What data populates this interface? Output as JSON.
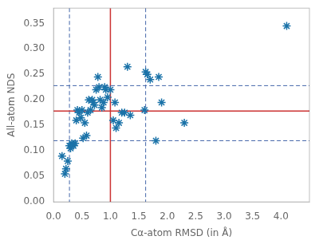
{
  "chart_data": {
    "type": "scatter",
    "xlabel": "Cα-atom RMSD (in Å)",
    "ylabel": "All-atom NDS",
    "x": [
      0.15,
      0.2,
      0.22,
      0.25,
      0.28,
      0.3,
      0.32,
      0.35,
      0.38,
      0.4,
      0.42,
      0.45,
      0.48,
      0.5,
      0.52,
      0.55,
      0.58,
      0.6,
      0.62,
      0.65,
      0.68,
      0.7,
      0.72,
      0.75,
      0.78,
      0.8,
      0.82,
      0.85,
      0.88,
      0.9,
      0.92,
      0.95,
      1.0,
      1.05,
      1.08,
      1.1,
      1.15,
      1.2,
      1.25,
      1.3,
      1.35,
      1.6,
      1.62,
      1.65,
      1.7,
      1.8,
      1.85,
      1.9,
      2.3,
      4.1
    ],
    "values": [
      0.09,
      0.055,
      0.065,
      0.08,
      0.11,
      0.105,
      0.115,
      0.11,
      0.115,
      0.16,
      0.18,
      0.175,
      0.165,
      0.18,
      0.125,
      0.155,
      0.13,
      0.175,
      0.2,
      0.18,
      0.2,
      0.195,
      0.19,
      0.22,
      0.245,
      0.225,
      0.2,
      0.185,
      0.195,
      0.225,
      0.22,
      0.205,
      0.22,
      0.16,
      0.195,
      0.145,
      0.155,
      0.175,
      0.175,
      0.265,
      0.17,
      0.18,
      0.255,
      0.25,
      0.24,
      0.12,
      0.245,
      0.195,
      0.155,
      0.345
    ],
    "color": "#1a72a8",
    "marker": "star",
    "xlim": [
      0.0,
      4.5
    ],
    "ylim": [
      0.0,
      0.38
    ],
    "xticks": [
      {
        "value": 0,
        "label": "0.0"
      },
      0.5,
      {
        "value": 1,
        "label": "1.0"
      },
      1.5,
      {
        "value": 2,
        "label": "2.0"
      },
      2.5,
      {
        "value": 3,
        "label": "3.0"
      },
      3.5,
      {
        "value": 4,
        "label": "4.0"
      }
    ],
    "yticks": [
      {
        "value": 0,
        "label": "0.00"
      },
      0.05,
      {
        "value": 0.1,
        "label": "0.10"
      },
      0.15,
      {
        "value": 0.2,
        "label": "0.20"
      },
      0.25,
      {
        "value": 0.3,
        "label": "0.30"
      },
      0.35
    ],
    "vlines": [
      {
        "value": 1.0,
        "color": "#cc3333",
        "line_style": "solid"
      },
      {
        "value": 0.28,
        "color": "#4466aa",
        "line_style": "dashed"
      },
      {
        "value": 1.62,
        "color": "#4466aa",
        "line_style": "dashed"
      }
    ],
    "hlines": [
      {
        "value": 0.178,
        "color": "#cc3333",
        "line_style": "solid"
      },
      {
        "value": 0.228,
        "color": "#4466aa",
        "line_style": "dashed"
      },
      {
        "value": 0.12,
        "color": "#4466aa",
        "line_style": "dashed"
      }
    ],
    "grid": false
  }
}
